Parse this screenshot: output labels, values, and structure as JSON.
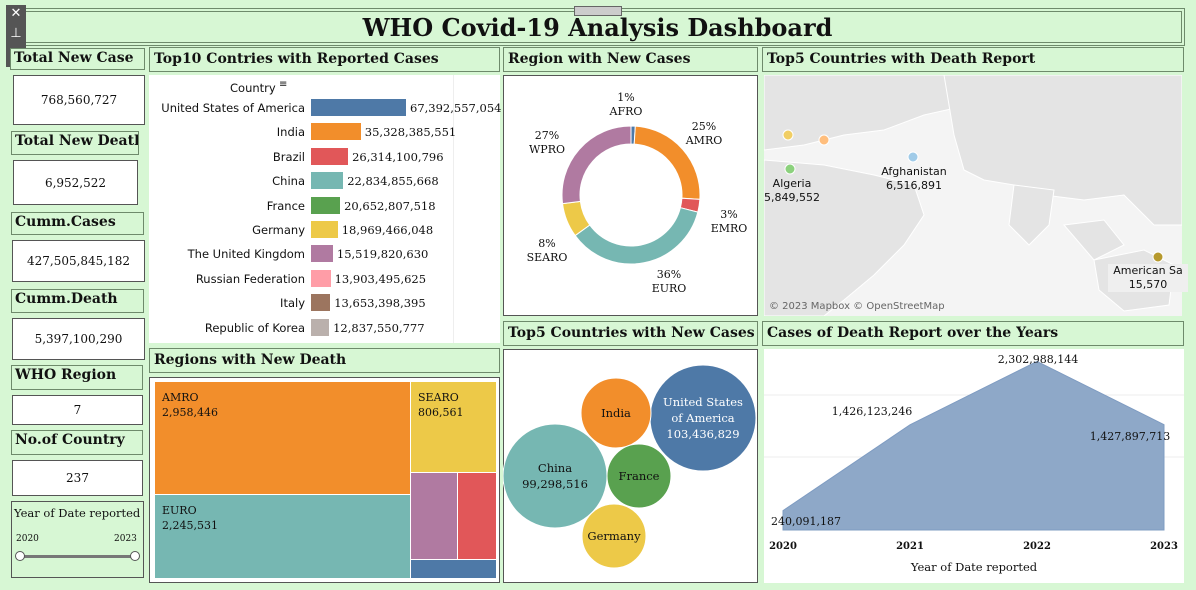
{
  "title": "WHO Covid-19 Analysis Dashboard",
  "toolbar": {
    "close": "✕",
    "pin": "⊥",
    "menu": "▾"
  },
  "kpis": [
    {
      "label": "Total New Case",
      "value": "768,560,727"
    },
    {
      "label": "Total  New Death",
      "value": "6,952,522"
    },
    {
      "label": "Cumm.Cases",
      "value": "427,505,845,182"
    },
    {
      "label": "Cumm.Death",
      "value": "5,397,100,290"
    },
    {
      "label": "WHO Region",
      "value": "7"
    },
    {
      "label": "No.of Country",
      "value": "237"
    }
  ],
  "year_filter": {
    "label": "Year of Date reported",
    "min": "2020",
    "max": "2023"
  },
  "panels": {
    "top10": "Top10 Contries with Reported Cases",
    "region_new_cases": "Region with New Cases",
    "top5_death": "Top5 Countries with Death Report",
    "regions_new_death": "Regions with New Death",
    "top5_new_cases": "Top5 Countries with New Cases",
    "death_over_years": "Cases of Death Report over  the Years"
  },
  "top10_header": "Country",
  "map_attribution": "© 2023 Mapbox © OpenStreetMap",
  "colors": {
    "blue": "#4e79a7",
    "orange": "#f28e2b",
    "red": "#e15759",
    "teal": "#76b7b2",
    "green": "#59a14f",
    "yellow": "#edc948",
    "purple": "#b07aa1",
    "pink": "#ff9da7",
    "brown": "#9c755f",
    "gray": "#bab0ac"
  },
  "chart_data": [
    {
      "type": "bar",
      "title": "Top10 Contries with Reported Cases",
      "categories": [
        "United States of America",
        "India",
        "Brazil",
        "China",
        "France",
        "Germany",
        "The United Kingdom",
        "Russian Federation",
        "Italy",
        "Republic of Korea"
      ],
      "values": [
        67392557054,
        35328385551,
        26314100796,
        22834855668,
        20652807518,
        18969466048,
        15519820630,
        13903495625,
        13653398395,
        12837550777
      ],
      "labels": [
        "67,392,557,054",
        "35,328,385,551",
        "26,314,100,796",
        "22,834,855,668",
        "20,652,807,518",
        "18,969,466,048",
        "15,519,820,630",
        "13,903,495,625",
        "13,653,398,395",
        "12,837,550,777"
      ],
      "colors": [
        "#4e79a7",
        "#f28e2b",
        "#e15759",
        "#76b7b2",
        "#59a14f",
        "#edc948",
        "#b07aa1",
        "#ff9da7",
        "#9c755f",
        "#bab0ac"
      ]
    },
    {
      "type": "pie",
      "title": "Region with New Cases",
      "categories": [
        "AFRO",
        "AMRO",
        "EMRO",
        "EURO",
        "SEARO",
        "WPRO"
      ],
      "values": [
        1,
        25,
        3,
        36,
        8,
        27
      ],
      "labels": [
        "1%",
        "25%",
        "3%",
        "36%",
        "8%",
        "27%"
      ],
      "colors": [
        "#4e79a7",
        "#f28e2b",
        "#e15759",
        "#76b7b2",
        "#edc948",
        "#b07aa1"
      ]
    },
    {
      "type": "scatter",
      "title": "Top5 Countries with Death Report",
      "points": [
        {
          "name": "Afghanistan",
          "value": "6,516,891",
          "color": "#a0cbe8"
        },
        {
          "name": "Algeria",
          "value": "5,849,552",
          "color": "#8cd17d"
        },
        {
          "name": "American Sa",
          "value": "15,570",
          "color": "#b6992d"
        }
      ]
    },
    {
      "type": "heatmap",
      "title": "Regions with New Death",
      "cells": [
        {
          "name": "AMRO",
          "value": "2,958,446",
          "color": "#f28e2b"
        },
        {
          "name": "SEARO",
          "value": "806,561",
          "color": "#edc948"
        },
        {
          "name": "EURO",
          "value": "2,245,531",
          "color": "#76b7b2"
        },
        {
          "name": "",
          "value": "",
          "color": "#b07aa1"
        },
        {
          "name": "",
          "value": "",
          "color": "#e15759"
        },
        {
          "name": "",
          "value": "",
          "color": "#4e79a7"
        }
      ]
    },
    {
      "type": "scatter",
      "title": "Top5 Countries with New Cases",
      "bubbles": [
        {
          "name": "United States of America",
          "value": "103,436,829",
          "color": "#4e79a7"
        },
        {
          "name": "China",
          "value": "99,298,516",
          "color": "#76b7b2"
        },
        {
          "name": "India",
          "value": "",
          "color": "#f28e2b"
        },
        {
          "name": "France",
          "value": "",
          "color": "#59a14f"
        },
        {
          "name": "Germany",
          "value": "",
          "color": "#edc948"
        }
      ]
    },
    {
      "type": "area",
      "title": "Cases of Death Report over  the Years",
      "x": [
        2020,
        2021,
        2022,
        2023
      ],
      "values": [
        240091187,
        1426123246,
        2302988144,
        1427897713
      ],
      "labels": [
        "240,091,187",
        "1,426,123,246",
        "2,302,988,144",
        "1,427,897,713"
      ],
      "xlabel": "Year of Date reported",
      "ylim": [
        0,
        2302988144
      ],
      "color": "#8ea8c8"
    }
  ]
}
